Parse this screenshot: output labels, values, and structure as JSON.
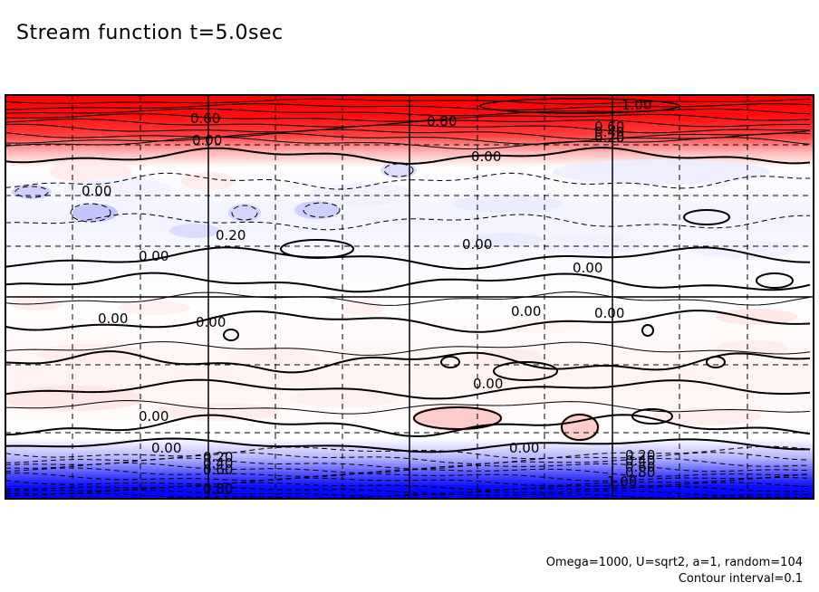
{
  "figure": {
    "title": "Stream function t=5.0sec",
    "params": "Omega=1000, U=sqrt2, a=1, random=104",
    "interval": "Contour interval=0.1"
  },
  "chart_data": {
    "type": "heatmap",
    "title": "Stream function t=5.0sec",
    "xlabel": "",
    "ylabel": "",
    "grid": true,
    "colormap": {
      "negative": "#0000ff",
      "zero": "#ffffff",
      "positive": "#ff0000",
      "range": [
        -1.0,
        1.0
      ]
    },
    "contour_interval": 0.1,
    "contour_styles": {
      "positive": "solid",
      "negative": "dashed",
      "zero": "thick solid"
    },
    "zonal_profile": {
      "note_fraction_from_top": [
        0.0,
        0.05,
        0.1,
        0.14,
        0.18,
        0.3,
        0.5,
        0.7,
        0.85,
        0.9,
        0.94,
        0.97,
        1.0
      ],
      "values": [
        1.0,
        0.95,
        0.75,
        0.3,
        0.0,
        -0.05,
        0.0,
        0.05,
        0.0,
        -0.3,
        -0.7,
        -0.95,
        -1.0
      ]
    },
    "contour_labels": [
      "0.60",
      "0.80",
      "1.00",
      "0.60",
      "0.40",
      "0.20",
      "0.00",
      "0.00",
      "0.00",
      "0.20",
      "0.00",
      "0.00",
      "0.00",
      "0.00",
      "0.00",
      "0.00",
      "0.00",
      "0.00",
      "0.00",
      "0.00",
      "0.00",
      "0.20",
      "0.40",
      "0.60",
      "0.80",
      "0.20",
      "0.40",
      "0.60",
      "0.80",
      "1.00"
    ]
  }
}
